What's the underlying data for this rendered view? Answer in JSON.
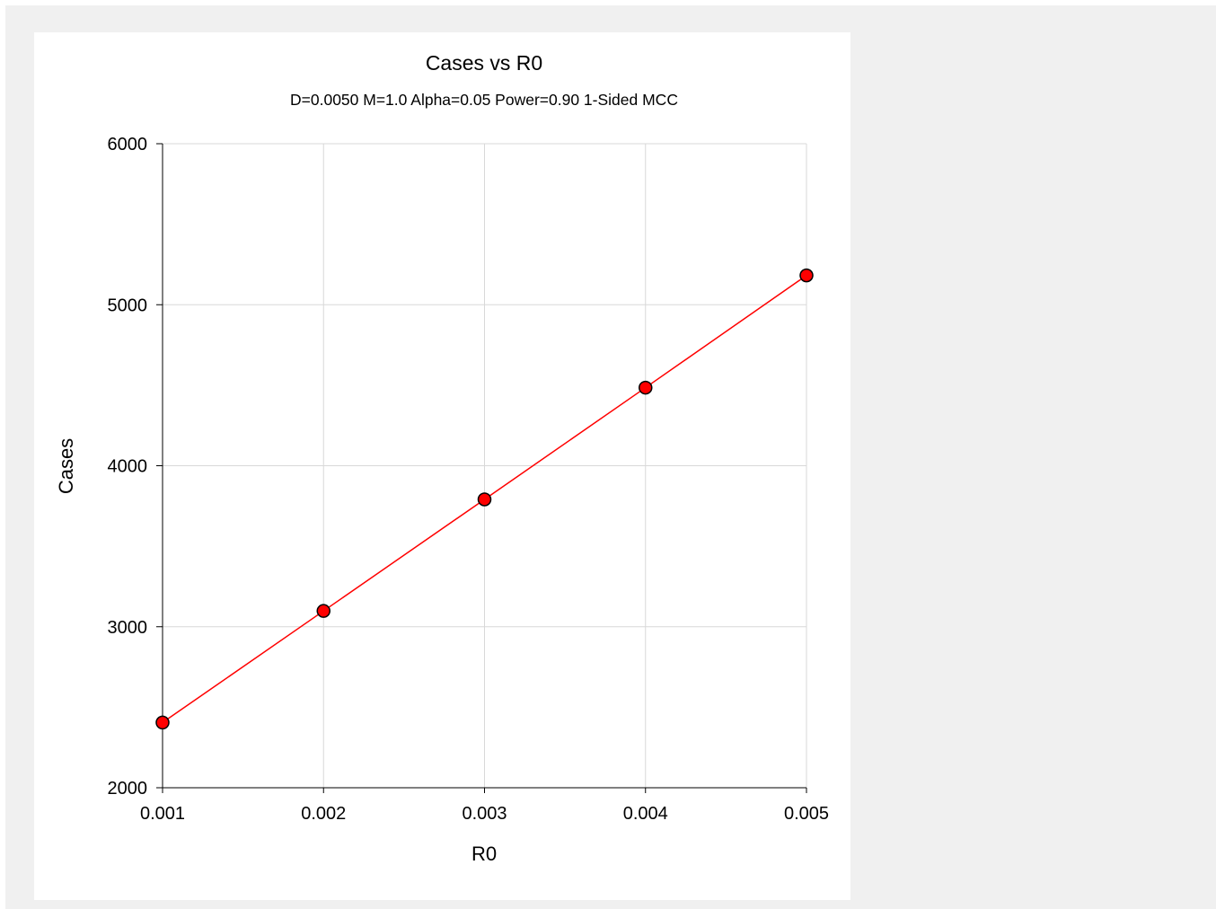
{
  "chart_data": {
    "type": "line",
    "title": "Cases vs R0",
    "subtitle": "D=0.0050 M=1.0 Alpha=0.05 Power=0.90 1-Sided MCC",
    "xlabel": "R0",
    "ylabel": "Cases",
    "xlim": [
      0.001,
      0.005
    ],
    "ylim": [
      2000,
      6000
    ],
    "xticks": [
      "0.001",
      "0.002",
      "0.003",
      "0.004",
      "0.005"
    ],
    "yticks": [
      "2000",
      "3000",
      "4000",
      "5000",
      "6000"
    ],
    "x": [
      0.001,
      0.002,
      0.003,
      0.004,
      0.005
    ],
    "y": [
      2405,
      3098,
      3791,
      4485,
      5182
    ],
    "grid": true,
    "line_color": "#ff0000",
    "marker_color": "#ff0000",
    "marker_edge_color": "#000000"
  }
}
